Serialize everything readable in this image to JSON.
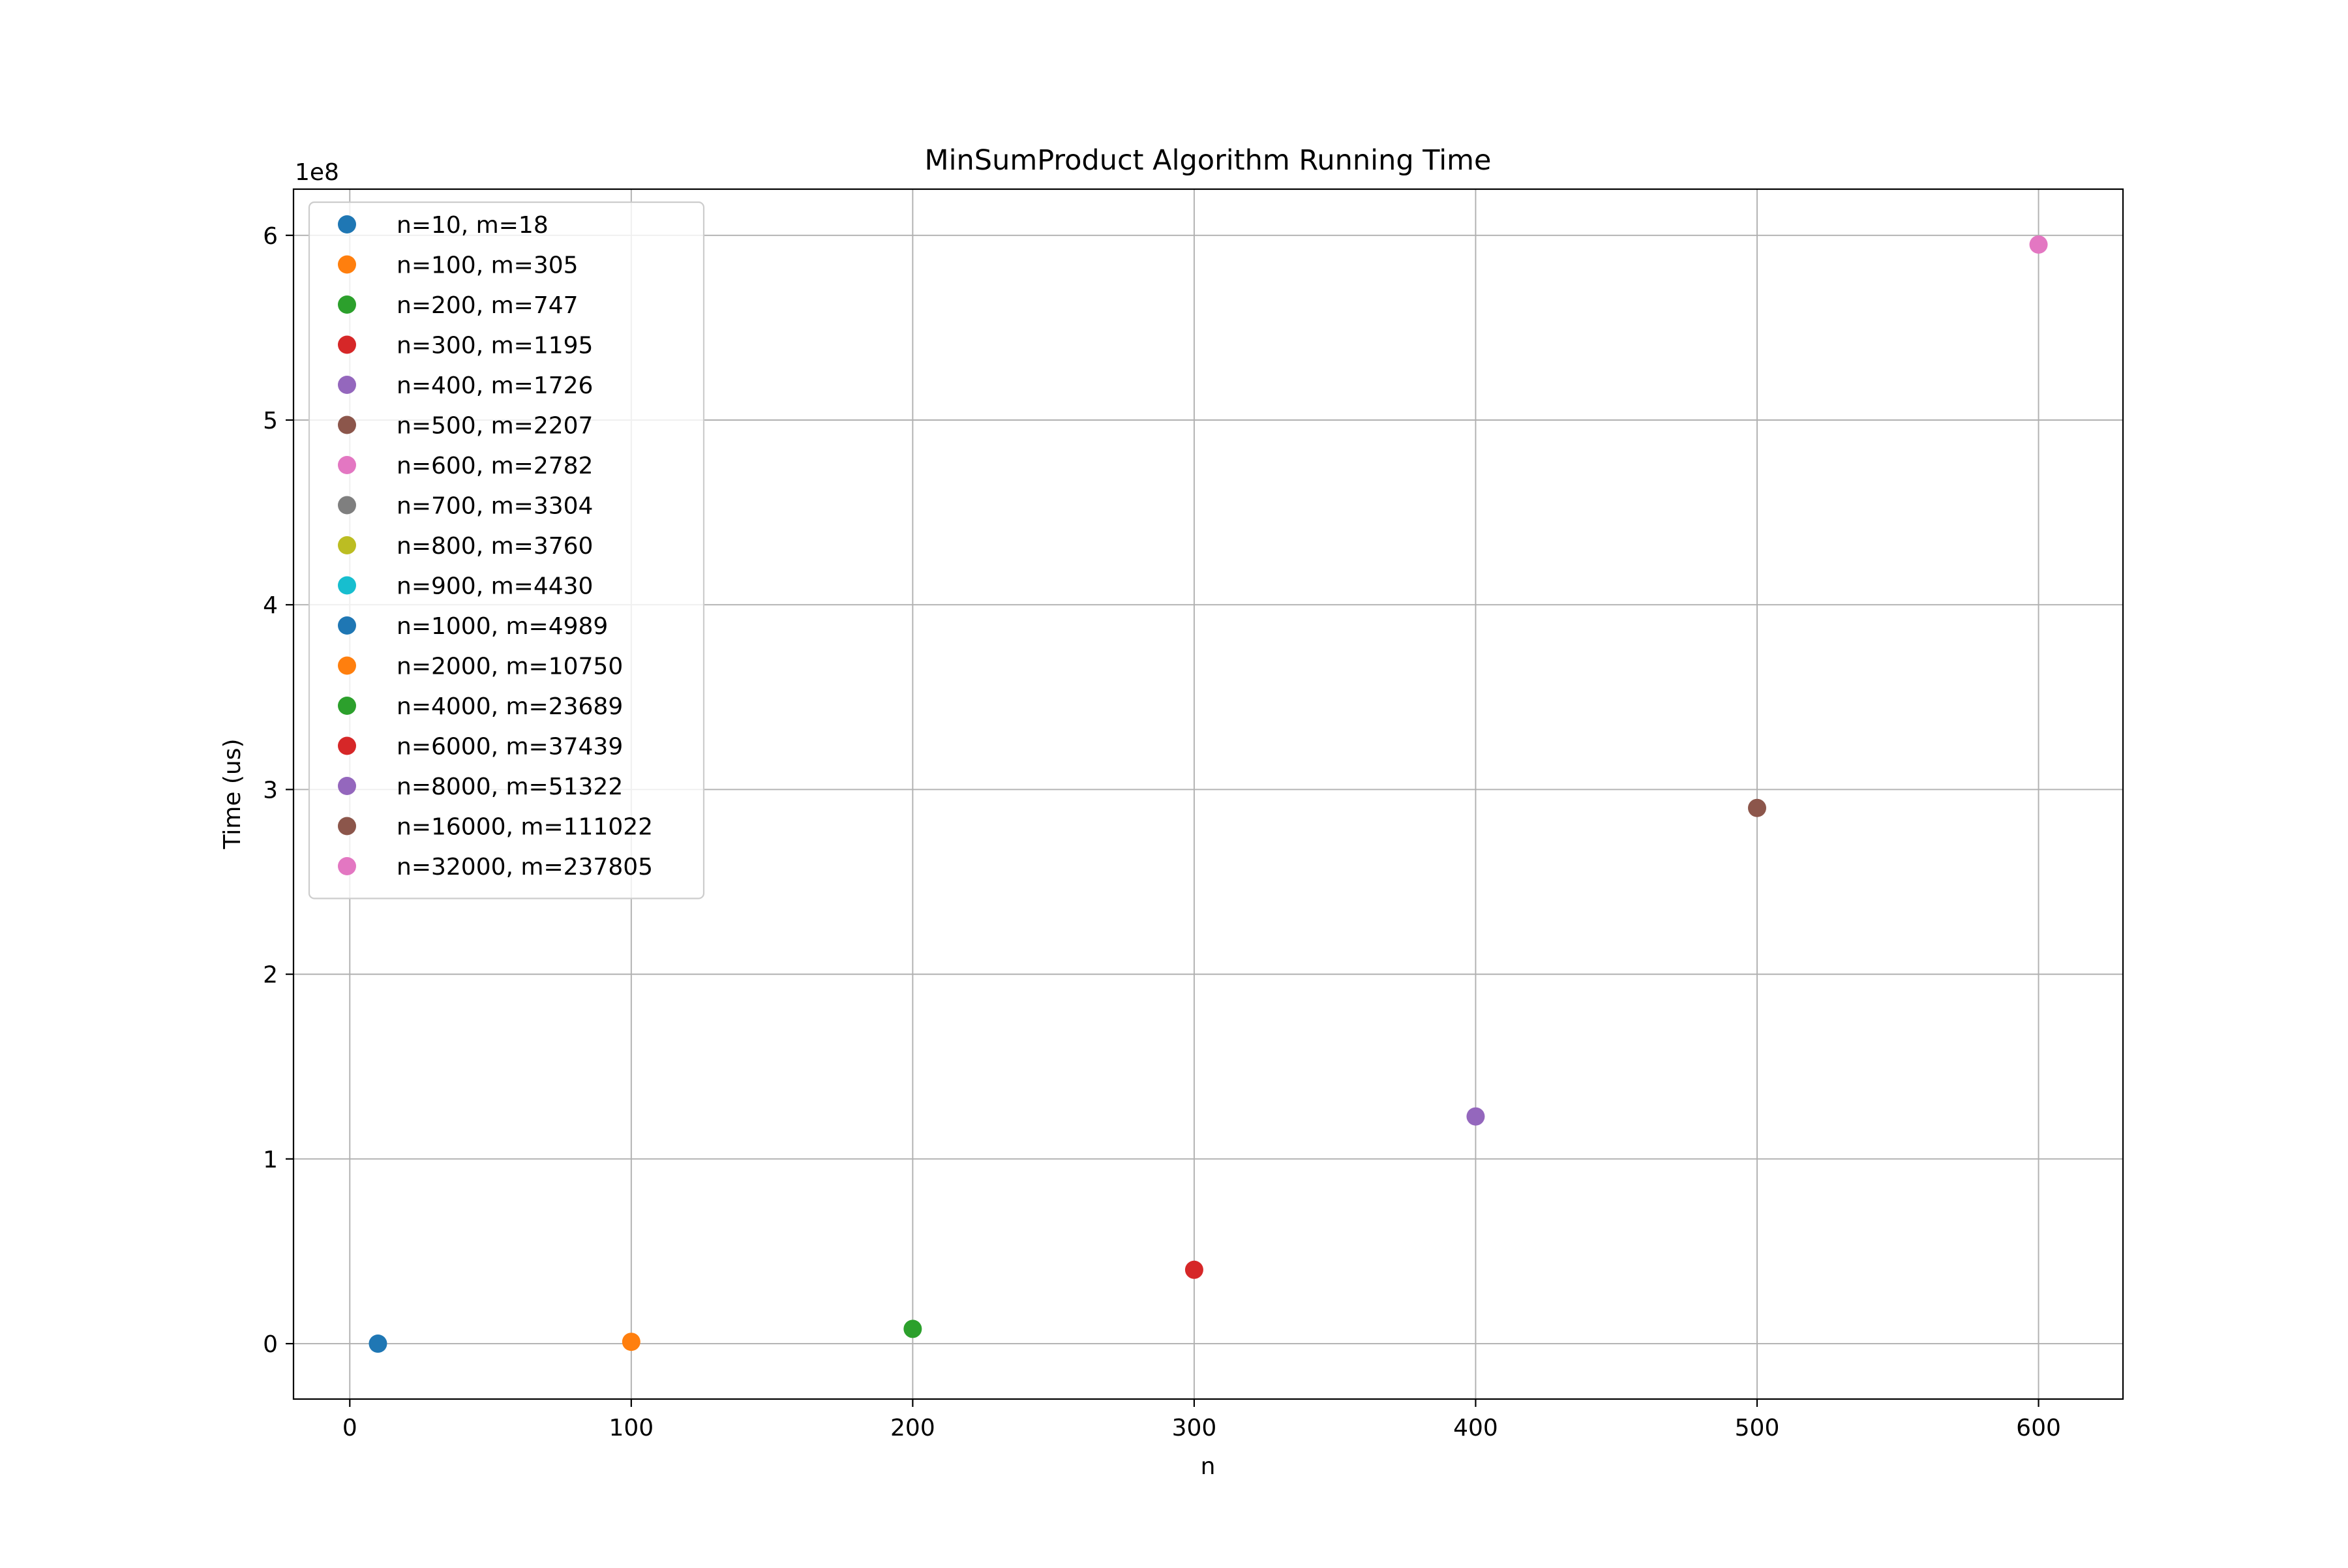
{
  "chart_data": {
    "type": "scatter",
    "title": "MinSumProduct Algorithm Running Time",
    "xlabel": "n",
    "ylabel": "Time (us)",
    "y_offset_label": "1e8",
    "y_scale": 100000000,
    "xlim": [
      -20,
      630
    ],
    "ylim": [
      -30000000,
      625000000
    ],
    "x_ticks": [
      0,
      100,
      200,
      300,
      400,
      500,
      600
    ],
    "x_tick_labels": [
      "0",
      "100",
      "200",
      "300",
      "400",
      "500",
      "600"
    ],
    "y_ticks": [
      0,
      100000000,
      200000000,
      300000000,
      400000000,
      500000000,
      600000000
    ],
    "y_tick_labels": [
      "0",
      "1",
      "2",
      "3",
      "4",
      "5",
      "6"
    ],
    "grid": true,
    "legend_position": "upper-left",
    "series": [
      {
        "name": "n=10, m=18",
        "color": "#1f77b4",
        "x": 10,
        "y": 0
      },
      {
        "name": "n=100, m=305",
        "color": "#ff7f0e",
        "x": 100,
        "y": 1000000
      },
      {
        "name": "n=200, m=747",
        "color": "#2ca02c",
        "x": 200,
        "y": 8000000
      },
      {
        "name": "n=300, m=1195",
        "color": "#d62728",
        "x": 300,
        "y": 40000000
      },
      {
        "name": "n=400, m=1726",
        "color": "#9467bd",
        "x": 400,
        "y": 123000000
      },
      {
        "name": "n=500, m=2207",
        "color": "#8c564b",
        "x": 500,
        "y": 290000000
      },
      {
        "name": "n=600, m=2782",
        "color": "#e377c2",
        "x": 600,
        "y": 595000000
      },
      {
        "name": "n=700, m=3304",
        "color": "#7f7f7f"
      },
      {
        "name": "n=800, m=3760",
        "color": "#bcbd22"
      },
      {
        "name": "n=900, m=4430",
        "color": "#17becf"
      },
      {
        "name": "n=1000, m=4989",
        "color": "#1f77b4"
      },
      {
        "name": "n=2000, m=10750",
        "color": "#ff7f0e"
      },
      {
        "name": "n=4000, m=23689",
        "color": "#2ca02c"
      },
      {
        "name": "n=6000, m=37439",
        "color": "#d62728"
      },
      {
        "name": "n=8000, m=51322",
        "color": "#9467bd"
      },
      {
        "name": "n=16000, m=111022",
        "color": "#8c564b"
      },
      {
        "name": "n=32000, m=237805",
        "color": "#e377c2"
      }
    ]
  }
}
